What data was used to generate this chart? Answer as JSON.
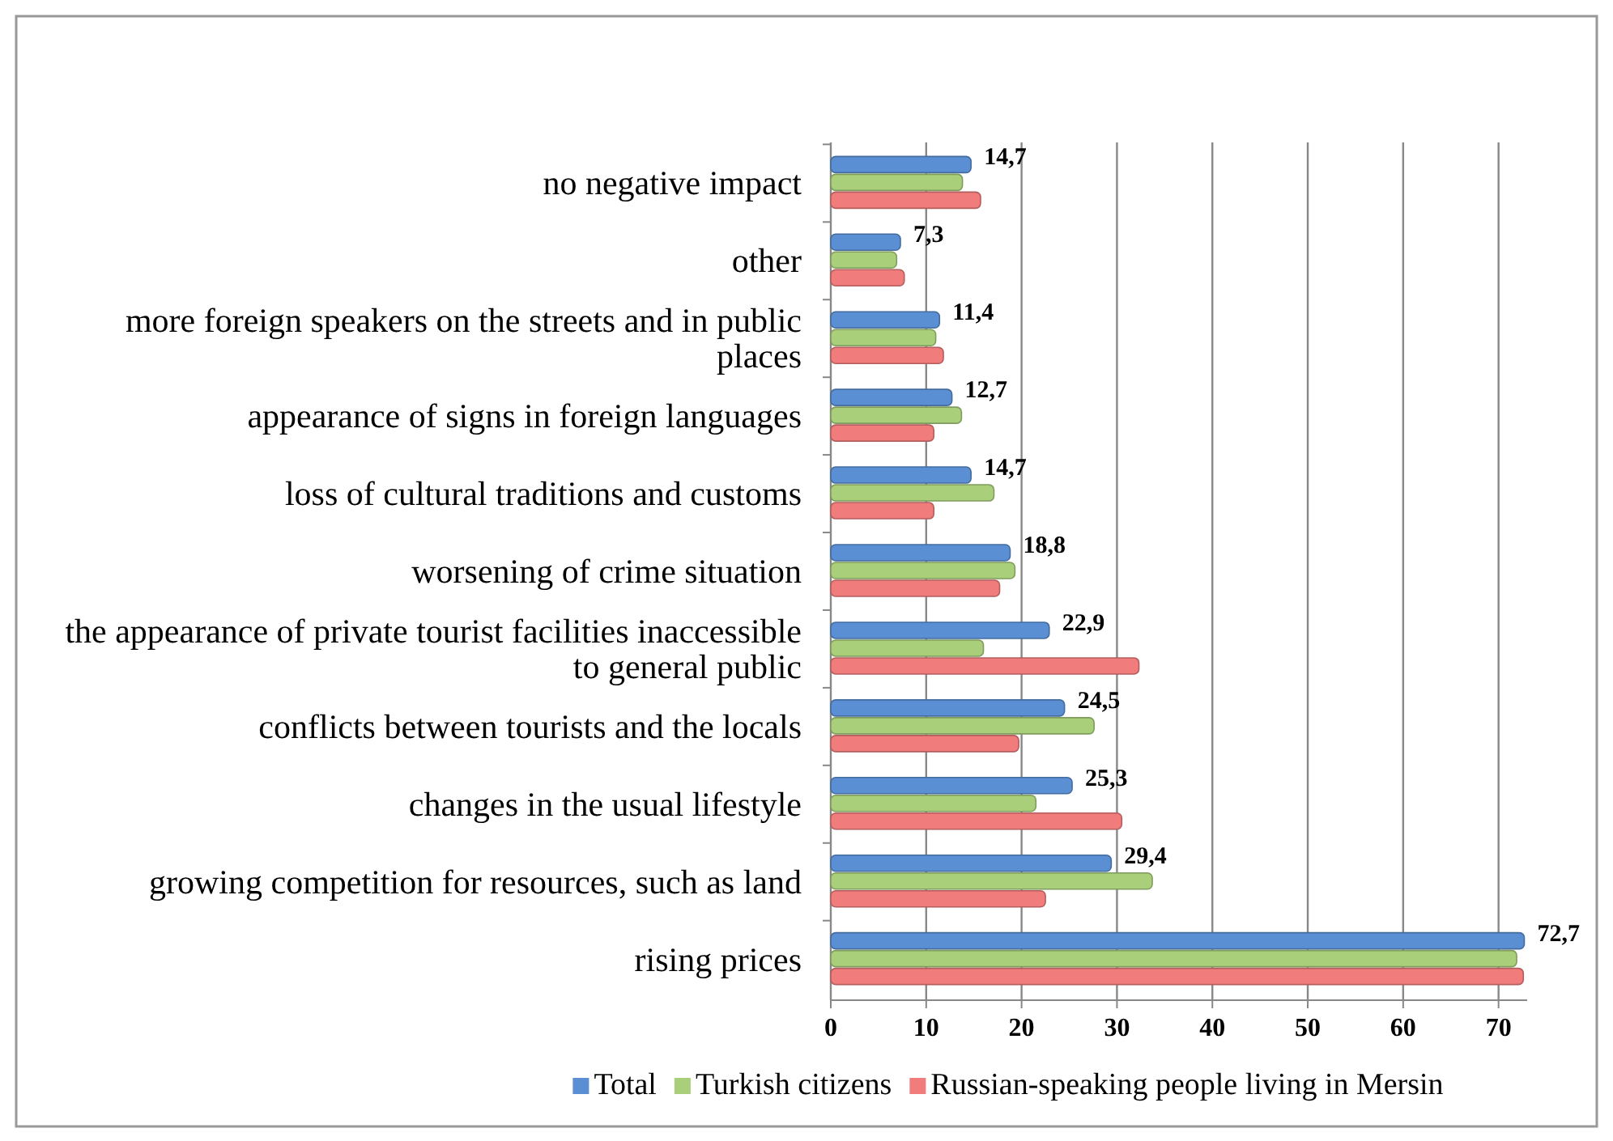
{
  "chart_data": {
    "type": "bar",
    "orientation": "horizontal",
    "categories": [
      "no negative impact",
      "other",
      "more foreign speakers on the streets and in public places",
      "appearance of signs in foreign languages",
      "loss of cultural traditions and customs",
      "worsening of crime situation",
      "the appearance of private tourist facilities inaccessible to general public",
      "conflicts between tourists and the locals",
      "changes in the usual lifestyle",
      "growing competition for resources, such as land",
      "rising prices"
    ],
    "series": [
      {
        "name": "Total",
        "color": "#5b8fd4",
        "values": [
          14.7,
          7.3,
          11.4,
          12.7,
          14.7,
          18.8,
          22.9,
          24.5,
          25.3,
          29.4,
          72.7
        ],
        "value_labels": [
          "14,7",
          "7,3",
          "11,4",
          "12,7",
          "14,7",
          "18,8",
          "22,9",
          "24,5",
          "25,3",
          "29,4",
          "72,7"
        ]
      },
      {
        "name": "Turkish citizens",
        "color": "#a9cf7a",
        "values": [
          13.8,
          6.9,
          11.0,
          13.7,
          17.1,
          19.3,
          16.0,
          27.6,
          21.5,
          33.7,
          71.9
        ]
      },
      {
        "name": "Russian-speaking people living in Mersin",
        "color": "#f07c7c",
        "values": [
          15.7,
          7.7,
          11.8,
          10.8,
          10.8,
          17.7,
          32.3,
          19.7,
          30.5,
          22.5,
          72.6
        ]
      }
    ],
    "xlim": [
      0,
      73
    ],
    "xticks": [
      0,
      10,
      20,
      30,
      40,
      50,
      60,
      70
    ],
    "grid": "x",
    "legend": "bottom"
  }
}
